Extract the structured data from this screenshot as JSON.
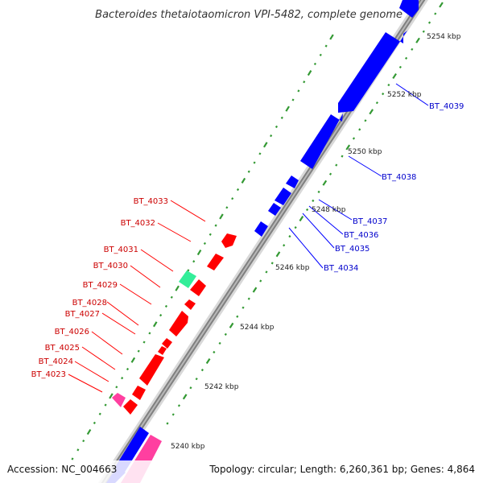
{
  "title": "Bacteroides thetaiotaomicron VPI-5482, complete genome",
  "accession": "Accession: NC_004663",
  "topology": "Topology: circular; Length: 6,260,361 bp; Genes: 4,864",
  "colors": {
    "forward": "#ff0000",
    "reverse": "#0000ff",
    "pink": "#ff3fa0",
    "teal": "#33ee99",
    "backbone": "#808080",
    "ticks": "#339933",
    "forward_label": "#cc0000",
    "reverse_label": "#0000cc"
  },
  "kbp_labels": [
    "5254 kbp",
    "5252 kbp",
    "5250 kbp",
    "5248 kbp",
    "5246 kbp",
    "5244 kbp",
    "5242 kbp",
    "5240 kbp"
  ],
  "forward_labels": [
    "BT_4033",
    "BT_4032",
    "BT_4031",
    "BT_4030",
    "BT_4029",
    "BT_4028",
    "BT_4027",
    "BT_4026",
    "BT_4025",
    "BT_4024",
    "BT_4023"
  ],
  "reverse_labels": [
    "BT_4039",
    "BT_4038",
    "BT_4037",
    "BT_4036",
    "BT_4035",
    "BT_4034"
  ]
}
